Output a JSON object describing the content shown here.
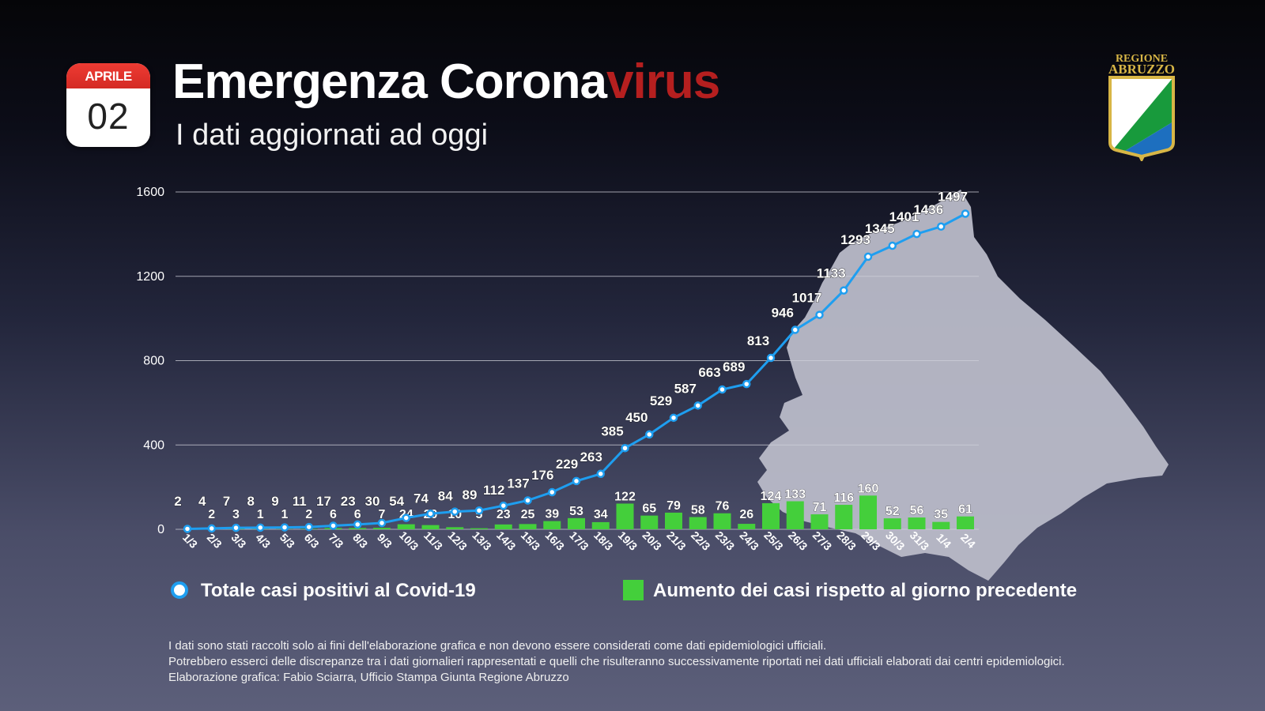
{
  "calendar": {
    "month": "APRILE",
    "day": "02"
  },
  "header": {
    "title_main": "Emergenza Corona",
    "title_accent": "virus",
    "subtitle": "I dati aggiornati ad oggi"
  },
  "logo": {
    "line1": "REGIONE",
    "line2": "ABRUZZO"
  },
  "colors": {
    "line": "#1e9ef0",
    "bars": "#44cf3b",
    "accent": "#b51f1f",
    "map": "#b9bbc8"
  },
  "legend": {
    "line_label": "Totale casi positivi al Covid-19",
    "bar_label": "Aumento dei casi rispetto al giorno precedente"
  },
  "notes": [
    "I dati sono stati raccolti solo ai fini dell'elaborazione grafica e non devono essere considerati come dati epidemiologici ufficiali.",
    "Potrebbero esserci delle discrepanze tra i dati giornalieri rappresentati e quelli che risulteranno successivamente riportati nei dati ufficiali elaborati dai centri epidemiologici.",
    "Elaborazione grafica: Fabio Sciarra, Ufficio Stampa Giunta Regione Abruzzo"
  ],
  "chart_data": {
    "type": "bar+line",
    "categories": [
      "1/3",
      "2/3",
      "3/3",
      "4/3",
      "5/3",
      "6/3",
      "7/3",
      "8/3",
      "9/3",
      "10/3",
      "11/3",
      "12/3",
      "13/3",
      "14/3",
      "15/3",
      "16/3",
      "17/3",
      "18/3",
      "19/3",
      "20/3",
      "21/3",
      "22/3",
      "23/3",
      "24/3",
      "25/3",
      "26/3",
      "27/3",
      "28/3",
      "29/3",
      "30/3",
      "31/3",
      "1/4",
      "2/4"
    ],
    "series": [
      {
        "name": "Totale casi positivi al Covid-19",
        "type": "line",
        "values": [
          2,
          4,
          7,
          8,
          9,
          11,
          17,
          23,
          30,
          54,
          74,
          84,
          89,
          112,
          137,
          176,
          229,
          263,
          385,
          450,
          529,
          587,
          663,
          689,
          813,
          946,
          1017,
          1133,
          1293,
          1345,
          1401,
          1436,
          1497
        ]
      },
      {
        "name": "Aumento dei casi rispetto al giorno precedente",
        "type": "bar",
        "values": [
          null,
          2,
          3,
          1,
          1,
          2,
          6,
          6,
          7,
          24,
          20,
          10,
          5,
          23,
          25,
          39,
          53,
          34,
          122,
          65,
          79,
          58,
          76,
          26,
          124,
          133,
          71,
          116,
          160,
          52,
          56,
          35,
          61
        ]
      }
    ],
    "yticks": [
      0,
      400,
      800,
      1200,
      1600
    ],
    "ylim": [
      0,
      1600
    ],
    "grid": true,
    "legend_position": "bottom"
  }
}
